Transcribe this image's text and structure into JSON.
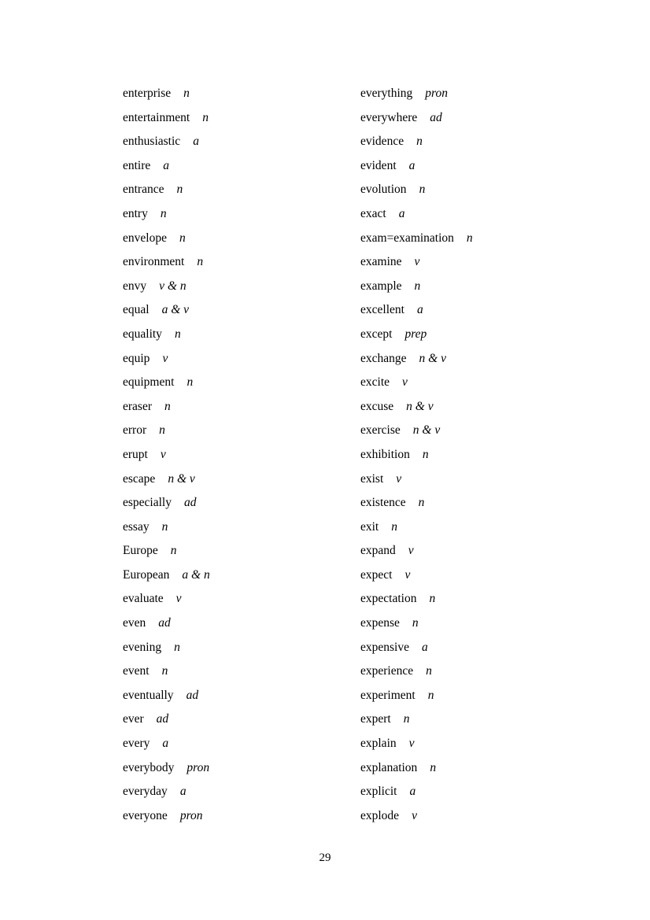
{
  "page": {
    "number": "29"
  },
  "columns": [
    {
      "entries": [
        {
          "word": "enterprise",
          "pos": "n"
        },
        {
          "word": "entertainment",
          "pos": "n"
        },
        {
          "word": "enthusiastic",
          "pos": "a"
        },
        {
          "word": "entire",
          "pos": "a"
        },
        {
          "word": "entrance",
          "pos": "n"
        },
        {
          "word": "entry",
          "pos": "n"
        },
        {
          "word": "envelope",
          "pos": "n"
        },
        {
          "word": "environment",
          "pos": "n"
        },
        {
          "word": "envy",
          "pos": "v & n"
        },
        {
          "word": "equal",
          "pos": "a & v"
        },
        {
          "word": "equality",
          "pos": "n"
        },
        {
          "word": "equip",
          "pos": "v"
        },
        {
          "word": "equipment",
          "pos": "n"
        },
        {
          "word": "eraser",
          "pos": "n"
        },
        {
          "word": "error",
          "pos": "n"
        },
        {
          "word": "erupt",
          "pos": "v"
        },
        {
          "word": "escape",
          "pos": "n & v"
        },
        {
          "word": "especially",
          "pos": "ad"
        },
        {
          "word": "essay",
          "pos": "n"
        },
        {
          "word": "Europe",
          "pos": "n"
        },
        {
          "word": "European",
          "pos": "a & n"
        },
        {
          "word": "evaluate",
          "pos": "v"
        },
        {
          "word": "even",
          "pos": "ad"
        },
        {
          "word": "evening",
          "pos": "n"
        },
        {
          "word": "event",
          "pos": "n"
        },
        {
          "word": "eventually",
          "pos": "ad"
        },
        {
          "word": "ever",
          "pos": "ad"
        },
        {
          "word": "every",
          "pos": "a"
        },
        {
          "word": "everybody",
          "pos": "pron"
        },
        {
          "word": "everyday",
          "pos": "a"
        },
        {
          "word": "everyone",
          "pos": "pron"
        }
      ]
    },
    {
      "entries": [
        {
          "word": "everything",
          "pos": "pron"
        },
        {
          "word": "everywhere",
          "pos": "ad"
        },
        {
          "word": "evidence",
          "pos": "n"
        },
        {
          "word": "evident",
          "pos": "a"
        },
        {
          "word": "evolution",
          "pos": "n"
        },
        {
          "word": "exact",
          "pos": "a"
        },
        {
          "word": "exam=examination",
          "pos": "n"
        },
        {
          "word": "examine",
          "pos": "v"
        },
        {
          "word": "example",
          "pos": "n"
        },
        {
          "word": "excellent",
          "pos": "a"
        },
        {
          "word": "except",
          "pos": "prep"
        },
        {
          "word": "exchange",
          "pos": "n & v"
        },
        {
          "word": "excite",
          "pos": "v"
        },
        {
          "word": "excuse",
          "pos": "n & v"
        },
        {
          "word": "exercise",
          "pos": "n & v"
        },
        {
          "word": "exhibition",
          "pos": "n"
        },
        {
          "word": "exist",
          "pos": "v"
        },
        {
          "word": "existence",
          "pos": "n"
        },
        {
          "word": "exit",
          "pos": "n"
        },
        {
          "word": "expand",
          "pos": "v"
        },
        {
          "word": "expect",
          "pos": "v"
        },
        {
          "word": "expectation",
          "pos": "n"
        },
        {
          "word": "expense",
          "pos": "n"
        },
        {
          "word": "expensive",
          "pos": "a"
        },
        {
          "word": "experience",
          "pos": "n"
        },
        {
          "word": "experiment",
          "pos": "n"
        },
        {
          "word": "expert",
          "pos": "n"
        },
        {
          "word": "explain",
          "pos": "v"
        },
        {
          "word": "explanation",
          "pos": "n"
        },
        {
          "word": "explicit",
          "pos": "a"
        },
        {
          "word": "explode",
          "pos": "v"
        }
      ]
    }
  ]
}
